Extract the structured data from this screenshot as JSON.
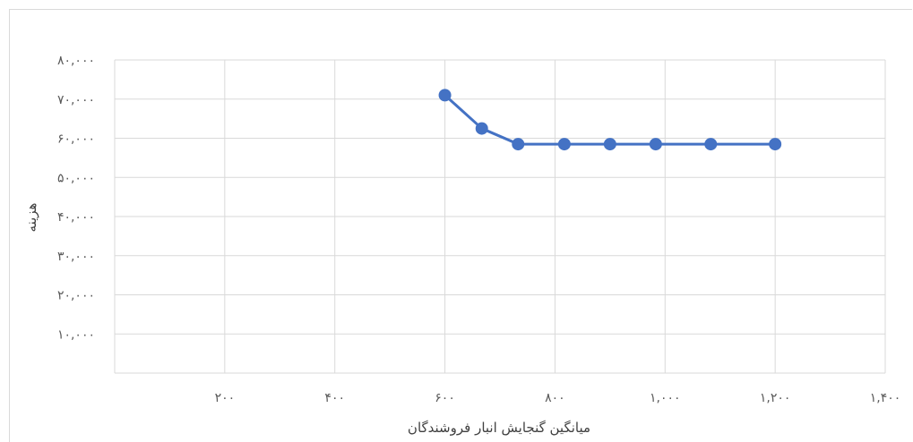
{
  "chart_data": {
    "type": "line",
    "title": "",
    "xlabel": "میانگین گنجایش انبار فروشندگان",
    "ylabel": "هزینه",
    "xlim": [
      0,
      1400
    ],
    "ylim": [
      0,
      80000
    ],
    "x_ticks": [
      200,
      400,
      600,
      800,
      1000,
      1200,
      1400
    ],
    "x_tick_labels": [
      "۲۰۰",
      "۴۰۰",
      "۶۰۰",
      "۸۰۰",
      "۱,۰۰۰",
      "۱,۲۰۰",
      "۱,۴۰۰"
    ],
    "y_ticks": [
      10000,
      20000,
      30000,
      40000,
      50000,
      60000,
      70000,
      80000
    ],
    "y_tick_labels": [
      "۱۰,۰۰۰",
      "۲۰,۰۰۰",
      "۳۰,۰۰۰",
      "۴۰,۰۰۰",
      "۵۰,۰۰۰",
      "۶۰,۰۰۰",
      "۷۰,۰۰۰",
      "۸۰,۰۰۰"
    ],
    "grid": true,
    "color": "#4472c4",
    "series": [
      {
        "x": [
          600,
          667,
          733,
          817,
          900,
          983,
          1083,
          1200
        ],
        "y": [
          71000,
          62500,
          58500,
          58500,
          58500,
          58500,
          58500,
          58500
        ]
      }
    ]
  }
}
